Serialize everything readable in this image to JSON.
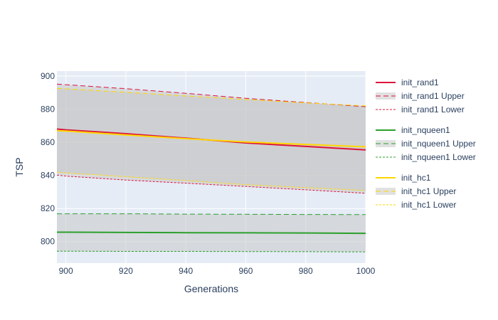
{
  "chart_data": {
    "type": "line",
    "title": "",
    "xlabel": "Generations",
    "ylabel": "TSP",
    "xlim": [
      897,
      1000
    ],
    "ylim": [
      787,
      903
    ],
    "xticks": [
      900,
      920,
      940,
      960,
      980,
      1000
    ],
    "yticks": [
      800,
      820,
      840,
      860,
      880,
      900
    ],
    "grid": true,
    "legend_position": "right",
    "plot_background": "#e5ecf6",
    "band_fill": "rgba(200,200,200,0.55)",
    "x": [
      897,
      900,
      920,
      940,
      960,
      980,
      1000
    ],
    "series": [
      {
        "name": "init_rand1",
        "color": "#dc143c",
        "values": [
          868,
          867.5,
          865.2,
          862.5,
          859.6,
          857.5,
          855.4
        ],
        "upper": {
          "name": "init_rand1 Upper",
          "values": [
            895.2,
            894.8,
            892.4,
            889.6,
            886.6,
            884.0,
            881.5
          ]
        },
        "lower": {
          "name": "init_rand1 Lower",
          "values": [
            840.2,
            839.6,
            837.2,
            835.3,
            833.3,
            831.3,
            829.2
          ]
        }
      },
      {
        "name": "init_nqueen1",
        "color": "#2ca02c",
        "values": [
          805.7,
          805.7,
          805.5,
          805.4,
          805.3,
          805.2,
          805.0
        ],
        "upper": {
          "name": "init_nqueen1 Upper",
          "values": [
            816.8,
            816.8,
            816.8,
            816.6,
            816.5,
            816.4,
            816.3
          ]
        },
        "lower": {
          "name": "init_nqueen1 Lower",
          "values": [
            794.2,
            794.2,
            794.1,
            794.1,
            794.0,
            793.9,
            793.8
          ]
        }
      },
      {
        "name": "init_hc1",
        "color": "#ffd700",
        "values": [
          867.0,
          866.8,
          864.4,
          862.2,
          860.2,
          858.7,
          857.3
        ],
        "upper": {
          "name": "init_hc1 Upper",
          "values": [
            892.6,
            892.3,
            890.2,
            888.0,
            885.8,
            883.8,
            882.0
          ]
        },
        "lower": {
          "name": "init_hc1 Lower",
          "values": [
            841.9,
            841.5,
            839.2,
            836.9,
            834.4,
            832.6,
            830.9
          ]
        }
      }
    ]
  }
}
